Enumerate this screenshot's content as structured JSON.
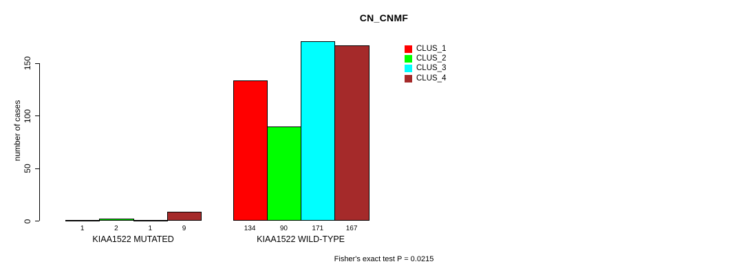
{
  "chart_data": {
    "type": "bar",
    "title": "CN_CNMF",
    "ylabel": "number of cases",
    "xlabel": "",
    "yticks": [
      0,
      50,
      100,
      150
    ],
    "ylim": [
      0,
      175
    ],
    "grid": false,
    "legend_position": "top-right",
    "bar_value_labels_shown": true,
    "categories": [
      "KIAA1522 MUTATED",
      "KIAA1522 WILD-TYPE"
    ],
    "series": [
      {
        "name": "CLUS_1",
        "color": "#FF0000",
        "values": [
          1,
          134
        ]
      },
      {
        "name": "CLUS_2",
        "color": "#00FF00",
        "values": [
          2,
          90
        ]
      },
      {
        "name": "CLUS_3",
        "color": "#00FFFF",
        "values": [
          1,
          171
        ]
      },
      {
        "name": "CLUS_4",
        "color": "#A52A2A",
        "values": [
          9,
          167
        ]
      }
    ],
    "annotation": "Fisher's exact test P = 0.0215"
  }
}
